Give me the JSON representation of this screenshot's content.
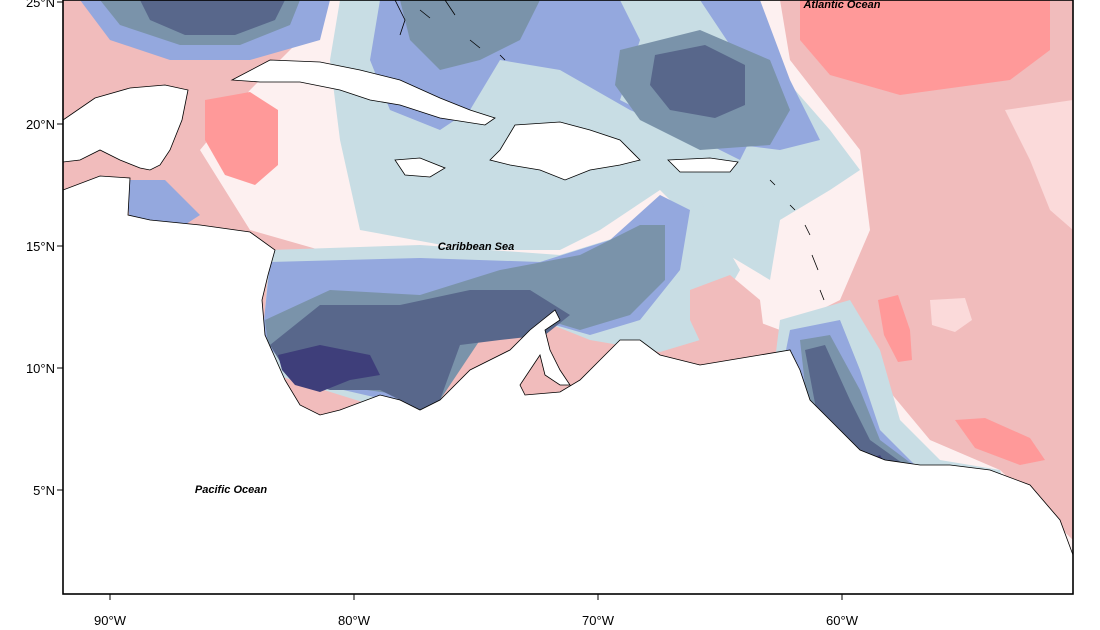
{
  "map": {
    "labels": {
      "atlantic": "Atlantic Ocean",
      "caribbean": "Caribbean Sea",
      "pacific": "Pacific Ocean"
    },
    "lat_ticks": [
      {
        "value": 25,
        "label": "25°N"
      },
      {
        "value": 20,
        "label": "20°N"
      },
      {
        "value": 15,
        "label": "15°N"
      },
      {
        "value": 10,
        "label": "10°N"
      },
      {
        "value": 5,
        "label": "5°N"
      }
    ],
    "lon_ticks": [
      {
        "value": -90,
        "label": "90°W"
      },
      {
        "value": -80,
        "label": "80°W"
      },
      {
        "value": -70,
        "label": "70°W"
      },
      {
        "value": -60,
        "label": "60°W"
      }
    ],
    "colors": {
      "pos_strong": "#ff9999",
      "pos_medium": "#f1bcbc",
      "pos_light": "#fbdada",
      "neutral": "#fdf0f0",
      "neg_faint": "#c8dde4",
      "neg_light": "#94a8de",
      "neg_medium": "#7a93aa",
      "neg_dark": "#58678b",
      "neg_darkest": "#3e3e7a",
      "land": "#ffffff",
      "coast": "#000000"
    }
  }
}
